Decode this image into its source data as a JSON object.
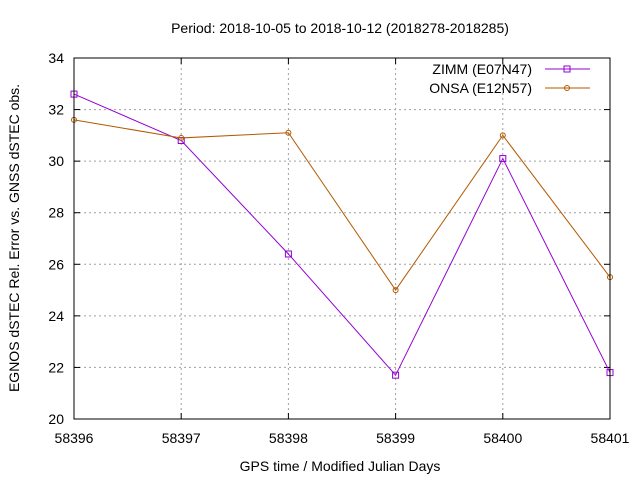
{
  "chart_data": {
    "type": "line",
    "title": "Period: 2018-10-05 to 2018-10-12 (2018278-2018285)",
    "xlabel": "GPS time / Modified Julian Days",
    "ylabel": "EGNOS dSTEC Rel. Error vs. GNSS dSTEC obs.",
    "xlim": [
      58396,
      58401
    ],
    "ylim": [
      20,
      34
    ],
    "xticks": [
      58396,
      58397,
      58398,
      58399,
      58400,
      58401
    ],
    "yticks": [
      20,
      22,
      24,
      26,
      28,
      30,
      32,
      34
    ],
    "xtick_labels": [
      "58396",
      "58397",
      "58398",
      "58399",
      "58400",
      "58401"
    ],
    "ytick_labels": [
      "20",
      "22",
      "24",
      "26",
      "28",
      "30",
      "32",
      "34"
    ],
    "grid": true,
    "legend_position": "top-right",
    "x": [
      58396,
      58397,
      58398,
      58399,
      58400,
      58401
    ],
    "series": [
      {
        "name": "ZIMM (E07N47)",
        "marker": "square",
        "color": "#9400d3",
        "values": [
          32.6,
          30.8,
          26.4,
          21.7,
          30.1,
          21.8
        ]
      },
      {
        "name": "ONSA (E12N57)",
        "marker": "circle",
        "color": "#b35900",
        "values": [
          31.6,
          30.9,
          31.1,
          25.0,
          31.0,
          25.5
        ]
      }
    ]
  }
}
